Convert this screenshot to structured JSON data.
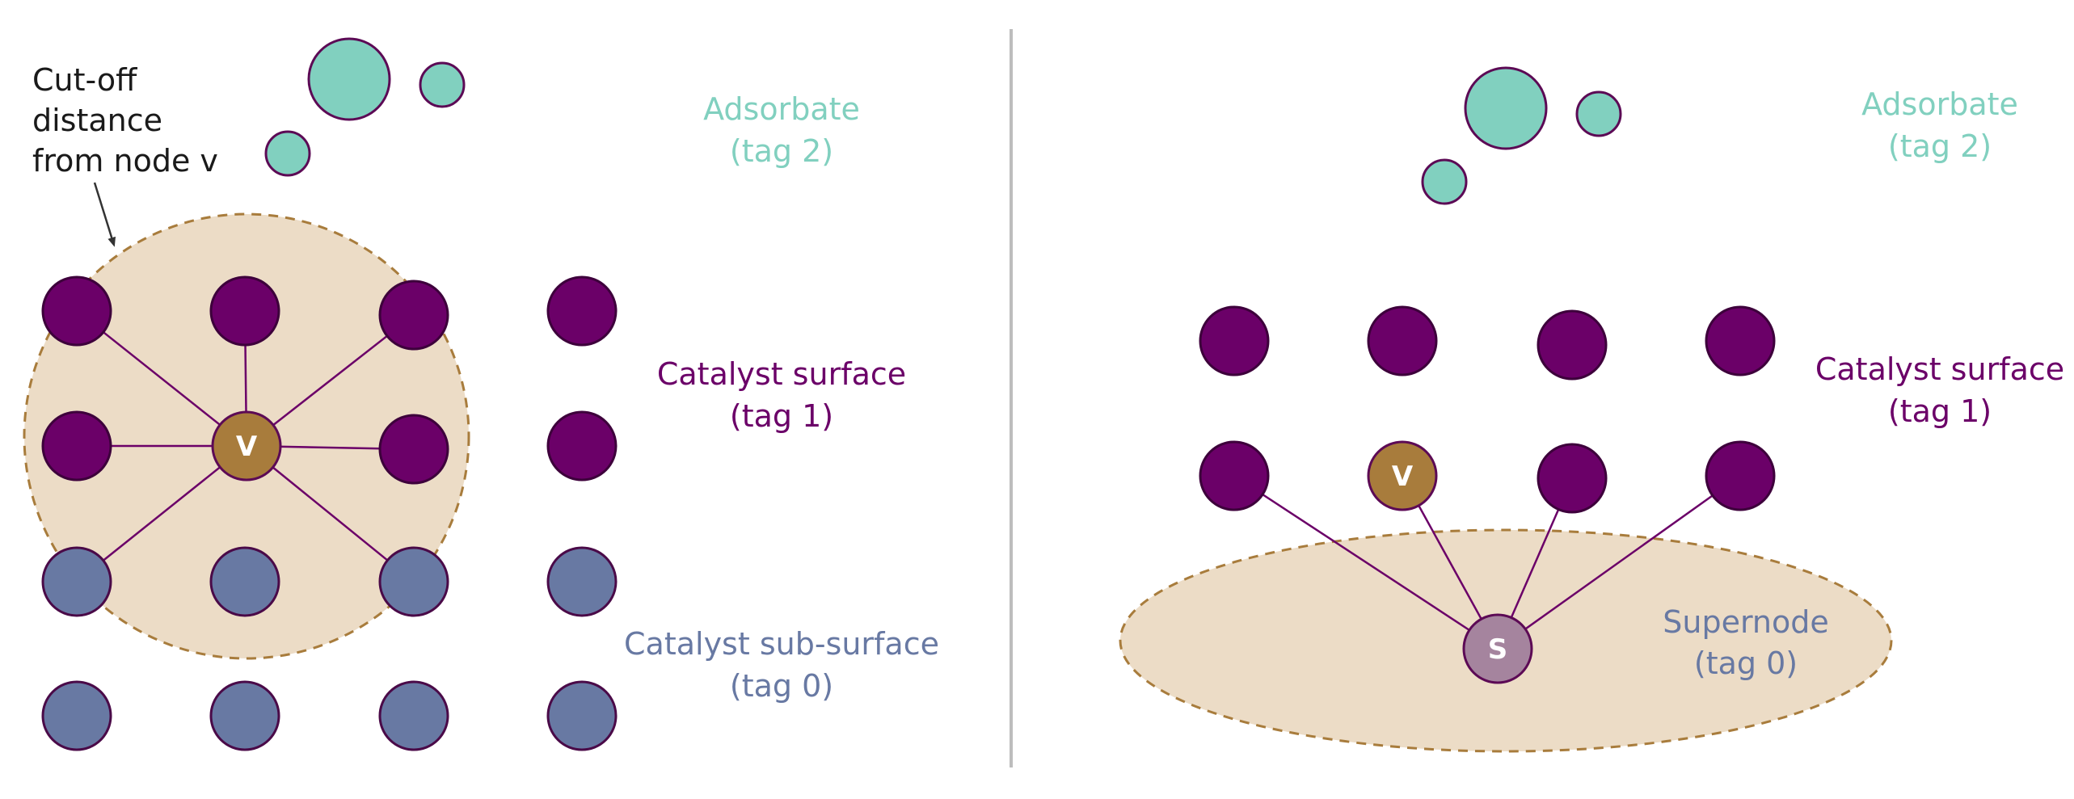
{
  "colors": {
    "adsorbate": "#81d0bf",
    "surface": "#6b0068",
    "subsurface": "#6879a3",
    "node_v": "#a87c3c",
    "supernode": "#a5849e",
    "region_fill": "#ecdcc6",
    "region_stroke": "#a87c3c",
    "edge": "#6b0068",
    "divider": "#bdbdbd",
    "annotation_text": "#1a1a1a"
  },
  "left_panel": {
    "cutoff_annotation": [
      "Cut-off",
      "distance",
      "from node v"
    ],
    "node_v_label": "V",
    "legend": {
      "adsorbate": [
        "Adsorbate",
        "(tag 2)"
      ],
      "surface": [
        "Catalyst surface",
        "(tag 1)"
      ],
      "subsurface": [
        "Catalyst sub-surface",
        "(tag 0)"
      ]
    }
  },
  "right_panel": {
    "node_v_label": "V",
    "supernode_label": "S",
    "legend": {
      "adsorbate": [
        "Adsorbate",
        "(tag 2)"
      ],
      "surface": [
        "Catalyst surface",
        "(tag 1)"
      ],
      "supernode": [
        "Supernode",
        "(tag 0)"
      ]
    }
  }
}
